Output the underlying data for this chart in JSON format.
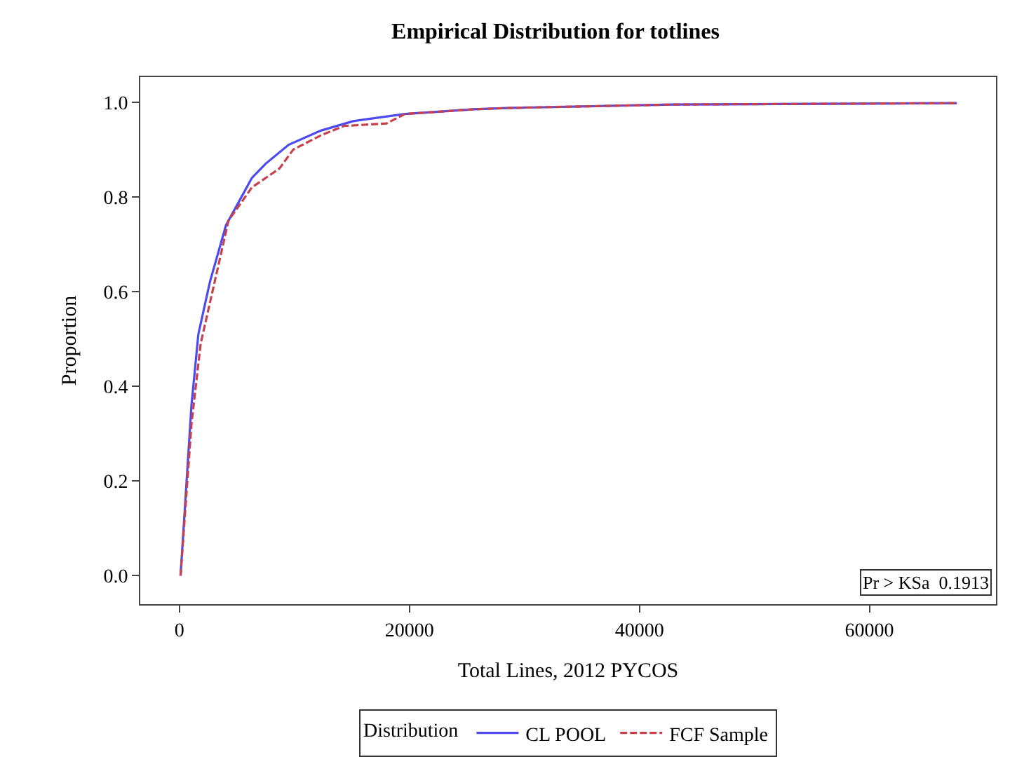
{
  "chart_data": {
    "type": "line",
    "title": "Empirical Distribution for totlines",
    "xlabel": "Total Lines, 2012 PYCOS",
    "ylabel": "Proportion",
    "legend_title": "Distribution",
    "series": [
      {
        "name": "CL POOL",
        "color": "#4b4bf0",
        "line_style": "solid",
        "x": [
          100,
          1050,
          1650,
          2650,
          4050,
          6300,
          7500,
          9500,
          12300,
          15100,
          19600,
          25600,
          28900,
          42900,
          67600
        ],
        "values": [
          0.0,
          0.36,
          0.51,
          0.62,
          0.74,
          0.84,
          0.87,
          0.91,
          0.94,
          0.96,
          0.975,
          0.985,
          0.988,
          0.995,
          0.998
        ]
      },
      {
        "name": "FCF Sample",
        "color": "#c8404c",
        "line_style": "dashed",
        "x": [
          100,
          1050,
          1850,
          3060,
          4270,
          6300,
          8700,
          9900,
          12300,
          14350,
          18000,
          19600,
          25600,
          28900,
          42900,
          67600
        ],
        "values": [
          0.0,
          0.32,
          0.49,
          0.62,
          0.75,
          0.82,
          0.86,
          0.9,
          0.93,
          0.95,
          0.955,
          0.975,
          0.985,
          0.988,
          0.995,
          0.998
        ]
      }
    ],
    "xlim": [
      -3400,
      71000
    ],
    "xticks": [
      0,
      20000,
      40000,
      60000
    ],
    "ylim": [
      -0.06,
      1.053
    ],
    "yticks": [
      {
        "value": 0,
        "label": "0.0"
      },
      {
        "value": 0.2,
        "label": "0.2"
      },
      {
        "value": 0.4,
        "label": "0.4"
      },
      {
        "value": 0.6,
        "label": "0.6"
      },
      {
        "value": 0.8,
        "label": "0.8"
      },
      {
        "value": 1,
        "label": "1.0"
      }
    ],
    "annotations": [
      "Pr > KSa  0.1913"
    ],
    "legend": "bottom",
    "marker": "none"
  }
}
